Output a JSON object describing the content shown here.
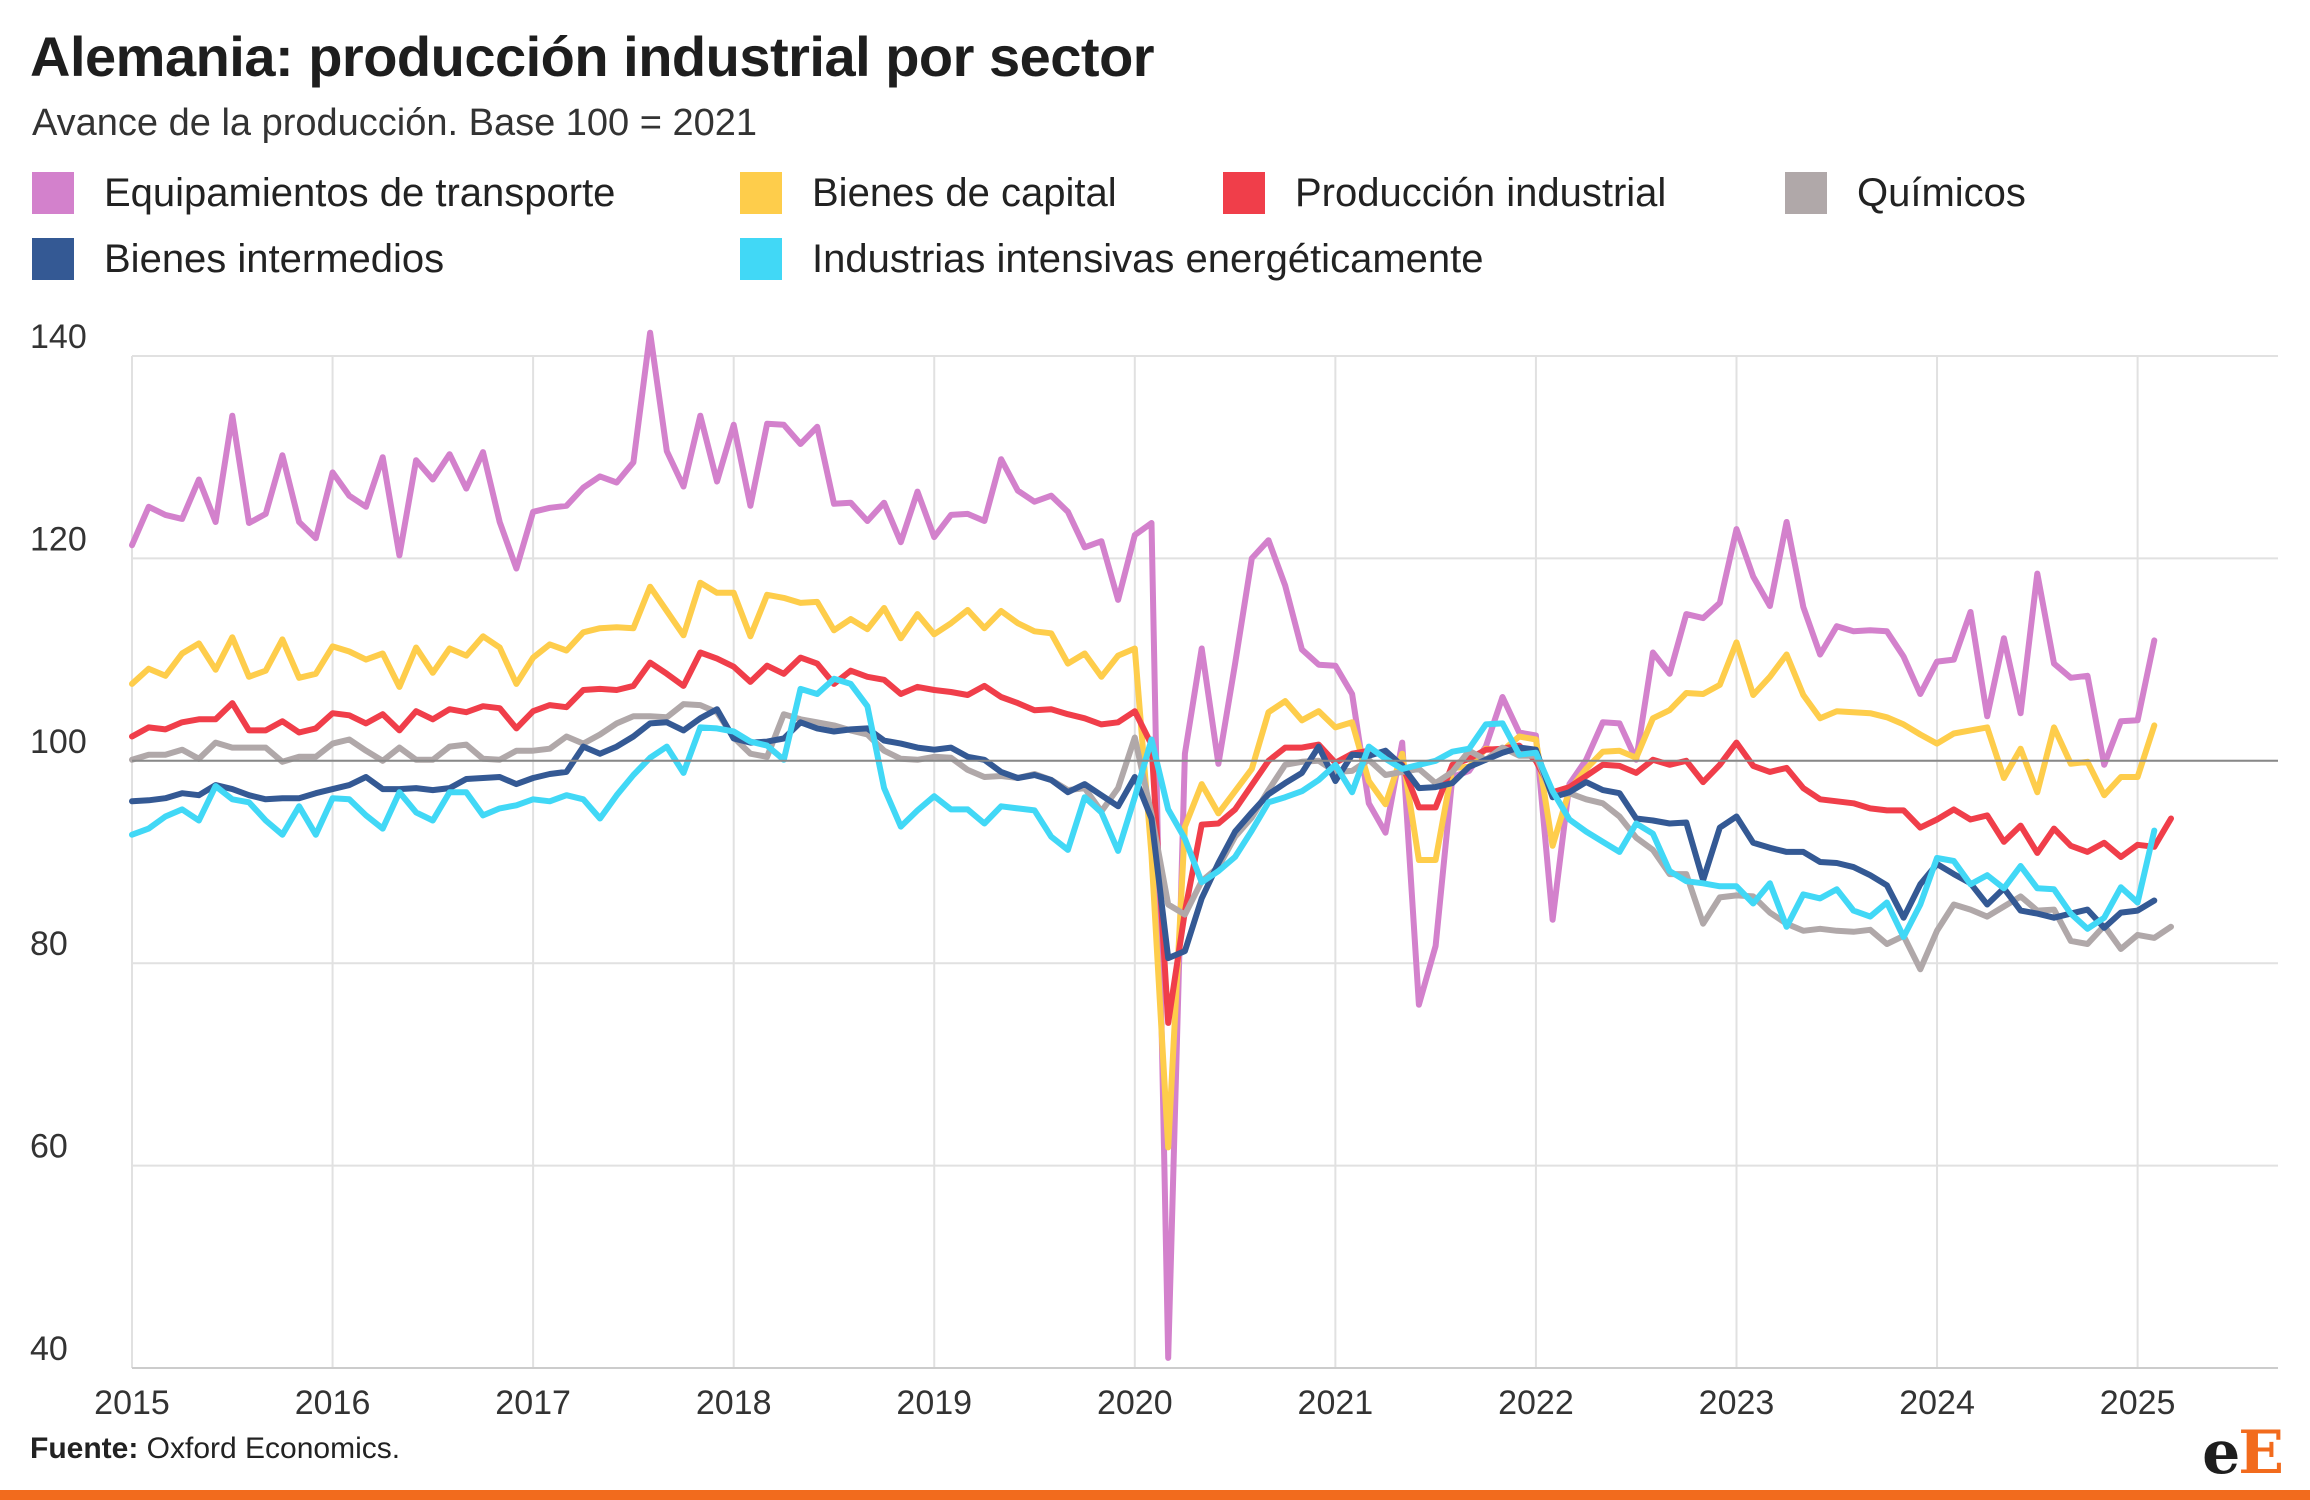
{
  "chart_data": {
    "type": "line",
    "title": "Alemania: producción industrial por sector",
    "subtitle": "Avance de la producción. Base 100 = 2021",
    "x_unit": "year",
    "x_start": 2015.0,
    "x_step": 0.0833333,
    "xlim": [
      2015,
      2025.7
    ],
    "ylim": [
      40,
      140
    ],
    "yticks": [
      40,
      60,
      80,
      100,
      120,
      140
    ],
    "xticks": [
      2015,
      2016,
      2017,
      2018,
      2019,
      2020,
      2021,
      2022,
      2023,
      2024,
      2025
    ],
    "reference_line": 100,
    "grid": true,
    "legend_position": "top",
    "series": [
      {
        "name": "Equipamientos de transporte",
        "color": "#D381CC",
        "values": [
          121.3,
          125.1,
          124.3,
          123.9,
          127.8,
          123.6,
          134.1,
          123.5,
          124.4,
          130.2,
          123.6,
          122.0,
          128.5,
          126.2,
          125.1,
          130.0,
          120.3,
          129.7,
          127.8,
          130.3,
          126.9,
          130.5,
          123.6,
          119.0,
          124.6,
          125.0,
          125.2,
          127.0,
          128.1,
          127.5,
          129.5,
          142.3,
          130.6,
          127.1,
          134.1,
          127.6,
          133.2,
          125.2,
          133.3,
          133.2,
          131.3,
          133.0,
          125.4,
          125.5,
          123.7,
          125.5,
          121.6,
          126.6,
          122.1,
          124.3,
          124.4,
          123.7,
          129.8,
          126.7,
          125.6,
          126.2,
          124.6,
          121.1,
          121.7,
          115.9,
          122.3,
          123.5,
          41.0,
          100.7,
          111.1,
          99.7,
          109.6,
          120.0,
          121.8,
          117.3,
          111.0,
          109.5,
          109.4,
          106.6,
          95.8,
          92.9,
          101.8,
          75.9,
          81.7,
          98.4,
          99.0,
          101.4,
          106.3,
          102.8,
          102.5,
          84.3,
          97.7,
          100.1,
          103.8,
          103.7,
          100.1,
          110.7,
          108.6,
          114.5,
          114.1,
          115.6,
          122.9,
          118.2,
          115.3,
          123.6,
          115.2,
          110.5,
          113.3,
          112.8,
          112.9,
          112.8,
          110.3,
          106.6,
          109.8,
          110.0,
          114.7,
          104.4,
          112.1,
          104.7,
          118.5,
          109.6,
          108.2,
          108.4,
          99.6,
          103.9,
          104.0,
          111.9
        ]
      },
      {
        "name": "Bienes de capital",
        "color": "#FECD4B",
        "values": [
          107.6,
          109.1,
          108.4,
          110.6,
          111.6,
          109.0,
          112.2,
          108.3,
          108.9,
          112.0,
          108.2,
          108.6,
          111.3,
          110.8,
          110.0,
          110.6,
          107.3,
          111.2,
          108.7,
          111.1,
          110.4,
          112.3,
          111.2,
          107.6,
          110.2,
          111.5,
          110.9,
          112.7,
          113.1,
          113.2,
          113.1,
          117.2,
          114.8,
          112.4,
          117.6,
          116.6,
          116.6,
          112.3,
          116.4,
          116.1,
          115.6,
          115.7,
          112.9,
          114.0,
          113.0,
          115.1,
          112.1,
          114.5,
          112.5,
          113.6,
          114.9,
          113.1,
          114.8,
          113.6,
          112.8,
          112.6,
          109.6,
          110.6,
          108.3,
          110.4,
          111.1,
          90.7,
          61.8,
          93.5,
          97.7,
          94.8,
          97.0,
          99.2,
          104.8,
          105.9,
          104.0,
          104.9,
          103.3,
          103.8,
          98.0,
          95.7,
          100.7,
          90.2,
          90.2,
          99.3,
          99.4,
          101.2,
          101.0,
          102.4,
          102.1,
          91.6,
          97.1,
          99.2,
          100.9,
          101.0,
          100.3,
          104.2,
          105.0,
          106.7,
          106.6,
          107.5,
          111.7,
          106.5,
          108.3,
          110.5,
          106.5,
          104.2,
          104.9,
          104.8,
          104.7,
          104.3,
          103.6,
          102.6,
          101.7,
          102.7,
          103.0,
          103.3,
          98.3,
          101.2,
          96.9,
          103.3,
          99.7,
          99.9,
          96.6,
          98.4,
          98.4,
          103.5
        ]
      },
      {
        "name": "Producción industrial",
        "color": "#F03E4A",
        "values": [
          102.4,
          103.3,
          103.1,
          103.8,
          104.1,
          104.1,
          105.7,
          103.0,
          103.0,
          103.9,
          102.8,
          103.2,
          104.7,
          104.5,
          103.7,
          104.6,
          103.0,
          104.9,
          104.1,
          105.1,
          104.8,
          105.4,
          105.2,
          103.2,
          104.9,
          105.5,
          105.3,
          107.0,
          107.1,
          107.0,
          107.4,
          109.7,
          108.6,
          107.4,
          110.7,
          110.1,
          109.3,
          107.8,
          109.4,
          108.6,
          110.2,
          109.6,
          107.6,
          108.9,
          108.3,
          108.0,
          106.6,
          107.3,
          107.0,
          106.8,
          106.5,
          107.4,
          106.3,
          105.7,
          105.0,
          105.1,
          104.6,
          104.2,
          103.6,
          103.8,
          104.9,
          101.6,
          74.1,
          85.1,
          93.7,
          93.8,
          95.2,
          97.6,
          100.0,
          101.3,
          101.3,
          101.6,
          99.8,
          100.7,
          101.0,
          100.5,
          99.6,
          95.4,
          95.4,
          99.6,
          100.2,
          101.1,
          101.2,
          101.5,
          100.0,
          96.9,
          97.4,
          98.5,
          99.6,
          99.5,
          98.8,
          100.1,
          99.6,
          100.0,
          97.9,
          99.6,
          101.8,
          99.5,
          98.9,
          99.3,
          97.3,
          96.2,
          96.0,
          95.8,
          95.3,
          95.1,
          95.1,
          93.4,
          94.2,
          95.2,
          94.2,
          94.6,
          92.0,
          93.6,
          90.9,
          93.3,
          91.6,
          91.0,
          91.9,
          90.5,
          91.7,
          91.5,
          94.3
        ]
      },
      {
        "name": "Químicos",
        "color": "#B0A8A9",
        "values": [
          100.1,
          100.6,
          100.6,
          101.1,
          100.2,
          101.8,
          101.3,
          101.3,
          101.3,
          99.9,
          100.4,
          100.4,
          101.7,
          102.1,
          101.0,
          100.0,
          101.3,
          100.1,
          100.1,
          101.4,
          101.6,
          100.2,
          100.1,
          101.0,
          101.0,
          101.2,
          102.4,
          101.7,
          102.6,
          103.7,
          104.4,
          104.4,
          104.3,
          105.6,
          105.5,
          104.8,
          102.3,
          100.7,
          100.4,
          104.6,
          104.1,
          103.8,
          103.5,
          103.0,
          102.6,
          101.0,
          100.2,
          100.1,
          100.4,
          100.3,
          99.1,
          98.4,
          98.5,
          98.3,
          98.7,
          98.1,
          97.1,
          97.3,
          95.0,
          97.3,
          102.3,
          94.7,
          85.8,
          84.8,
          88.1,
          89.5,
          92.5,
          94.4,
          97.1,
          99.6,
          99.9,
          100.0,
          98.9,
          99.0,
          100.1,
          98.6,
          98.9,
          99.2,
          97.8,
          98.9,
          101.0,
          100.1,
          101.3,
          100.5,
          100.5,
          96.5,
          96.8,
          96.2,
          95.8,
          94.5,
          92.4,
          91.2,
          88.8,
          88.8,
          83.9,
          86.5,
          86.7,
          86.6,
          85.0,
          83.9,
          83.2,
          83.4,
          83.2,
          83.1,
          83.3,
          81.9,
          82.7,
          79.4,
          83.2,
          85.8,
          85.3,
          84.6,
          85.6,
          86.6,
          85.2,
          85.3,
          82.2,
          81.9,
          83.7,
          81.4,
          82.8,
          82.5,
          83.6
        ]
      },
      {
        "name": "Bienes intermedios",
        "color": "#345994",
        "values": [
          96.0,
          96.1,
          96.3,
          96.8,
          96.6,
          97.6,
          97.2,
          96.6,
          96.2,
          96.3,
          96.3,
          96.8,
          97.2,
          97.6,
          98.4,
          97.2,
          97.2,
          97.3,
          97.1,
          97.3,
          98.2,
          98.3,
          98.4,
          97.7,
          98.3,
          98.7,
          98.9,
          101.4,
          100.7,
          101.4,
          102.4,
          103.7,
          103.8,
          103.0,
          104.2,
          105.1,
          102.2,
          101.8,
          101.9,
          102.2,
          103.8,
          103.2,
          102.9,
          103.1,
          103.2,
          102.0,
          101.7,
          101.3,
          101.1,
          101.3,
          100.4,
          100.1,
          98.9,
          98.3,
          98.6,
          98.1,
          96.9,
          97.7,
          96.6,
          95.5,
          98.4,
          94.3,
          80.5,
          81.2,
          86.4,
          89.9,
          93.0,
          94.9,
          96.7,
          97.8,
          98.8,
          101.4,
          98.0,
          100.6,
          100.5,
          101.0,
          99.5,
          97.3,
          97.4,
          97.8,
          99.4,
          100.1,
          100.8,
          101.3,
          101.1,
          96.4,
          96.9,
          97.9,
          97.1,
          96.8,
          94.3,
          94.1,
          93.8,
          93.9,
          88.2,
          93.4,
          94.5,
          91.9,
          91.4,
          91.0,
          91.0,
          90.0,
          89.9,
          89.5,
          88.7,
          87.7,
          84.5,
          87.8,
          89.8,
          88.8,
          87.9,
          85.8,
          87.4,
          85.2,
          84.9,
          84.5,
          84.9,
          85.3,
          83.5,
          85.0,
          85.2,
          86.2
        ]
      },
      {
        "name": "Industrias intensivas energéticamente",
        "color": "#41D8F6",
        "values": [
          92.7,
          93.3,
          94.5,
          95.2,
          94.1,
          97.5,
          96.2,
          95.9,
          94.1,
          92.7,
          95.5,
          92.7,
          96.3,
          96.2,
          94.6,
          93.3,
          96.9,
          94.9,
          94.1,
          96.9,
          96.9,
          94.6,
          95.3,
          95.6,
          96.2,
          96.0,
          96.6,
          96.2,
          94.3,
          96.6,
          98.6,
          100.3,
          101.4,
          98.8,
          103.3,
          103.2,
          102.9,
          101.9,
          101.5,
          100.1,
          107.1,
          106.6,
          108.1,
          107.6,
          105.4,
          97.3,
          93.5,
          95.1,
          96.5,
          95.2,
          95.2,
          93.8,
          95.5,
          95.3,
          95.1,
          92.5,
          91.2,
          96.4,
          94.9,
          91.1,
          96.4,
          102.1,
          95.2,
          92.3,
          88.0,
          89.1,
          90.5,
          93.1,
          95.9,
          96.4,
          97.0,
          98.1,
          99.6,
          96.9,
          101.4,
          100.2,
          99.2,
          99.6,
          100.0,
          100.9,
          101.2,
          103.6,
          103.7,
          100.6,
          100.8,
          97.0,
          94.2,
          93.0,
          92.0,
          91.0,
          93.8,
          92.8,
          89.1,
          88.1,
          87.9,
          87.6,
          87.6,
          85.9,
          87.9,
          83.6,
          86.8,
          86.4,
          87.3,
          85.2,
          84.6,
          86.0,
          82.6,
          85.8,
          90.4,
          90.1,
          87.8,
          88.7,
          87.4,
          89.6,
          87.4,
          87.3,
          84.9,
          83.4,
          84.5,
          87.5,
          86.0,
          93.1
        ]
      }
    ]
  },
  "source": {
    "label": "Fuente:",
    "text": "Oxford Economics."
  },
  "logo": {
    "part1": "e",
    "part2": "E",
    "color1": "#1e1e1e",
    "color2": "#F26B1D"
  },
  "colors": {
    "accent_bar": "#F26B1D",
    "grid": "#E1E1E1",
    "reference": "#888888"
  }
}
